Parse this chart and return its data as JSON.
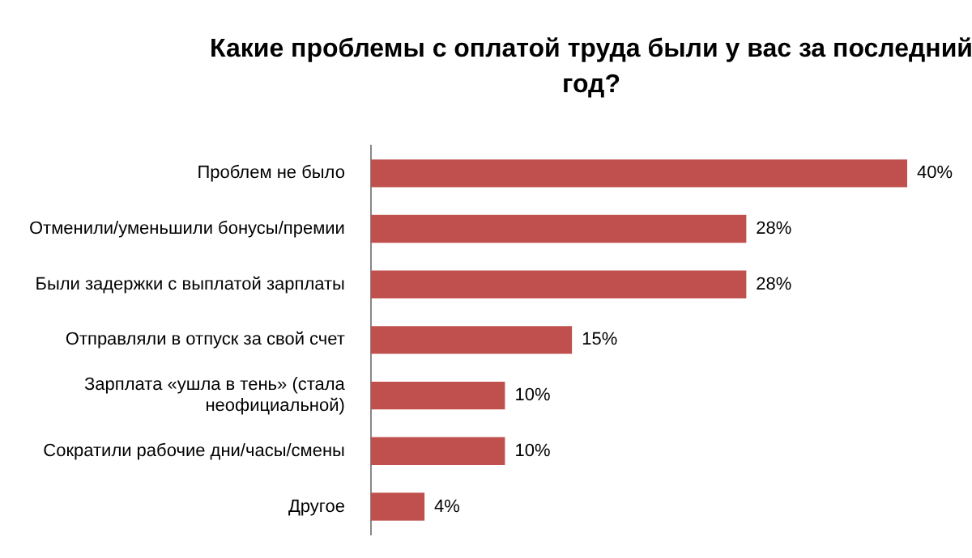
{
  "chart_data": {
    "type": "bar",
    "orientation": "horizontal",
    "title": "Какие проблемы с оплатой труда были у вас за последний год?",
    "categories": [
      "Проблем не было",
      "Отменили/уменьшили бонусы/премии",
      "Были задержки с выплатой зарплаты",
      "Отправляли в отпуск за свой счет",
      "Зарплата «ушла в тень» (стала неофициальной)",
      "Сократили рабочие дни/часы/смены",
      "Другое"
    ],
    "values": [
      40,
      28,
      28,
      15,
      10,
      10,
      4
    ],
    "value_labels": [
      "40%",
      "28%",
      "28%",
      "15%",
      "10%",
      "10%",
      "4%"
    ],
    "color": "#c0504d",
    "legend": false,
    "tick_labels": "y"
  }
}
